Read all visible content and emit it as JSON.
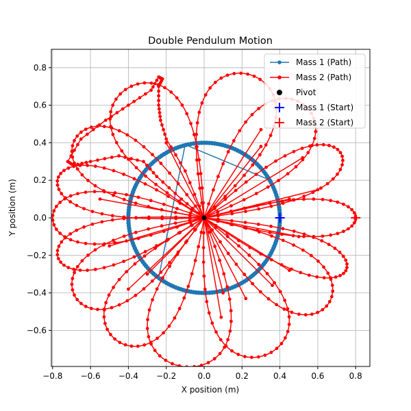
{
  "chart_data": {
    "type": "line",
    "title": "Double Pendulum Motion",
    "xlabel": "X position (m)",
    "ylabel": "Y position (m)",
    "xlim": [
      -0.8,
      0.8
    ],
    "ylim": [
      -0.8,
      0.9
    ],
    "xticks": [
      "−0.8",
      "−0.6",
      "−0.4",
      "−0.2",
      "0.0",
      "0.2",
      "0.4",
      "0.6",
      "0.8"
    ],
    "xtick_values": [
      -0.8,
      -0.6,
      -0.4,
      -0.2,
      0.0,
      0.2,
      0.4,
      0.6,
      0.8
    ],
    "yticks": [
      "−0.6",
      "−0.4",
      "−0.2",
      "0.0",
      "0.2",
      "0.4",
      "0.6",
      "0.8"
    ],
    "ytick_values": [
      -0.6,
      -0.4,
      -0.2,
      0.0,
      0.2,
      0.4,
      0.6,
      0.8
    ],
    "grid": true,
    "legend_position": "top-right",
    "legend": [
      {
        "label": "Mass 1 (Path)",
        "kind": "line-dot",
        "color": "#1f77b4"
      },
      {
        "label": "Mass 2 (Path)",
        "kind": "line-dot",
        "color": "#ff0000"
      },
      {
        "label": "Pivot",
        "kind": "dot",
        "color": "#000000"
      },
      {
        "label": "Mass 1 (Start)",
        "kind": "plus",
        "color": "#0000ff"
      },
      {
        "label": "Mass 2 (Start)",
        "kind": "plus",
        "color": "#ff0000"
      }
    ],
    "pivot": [
      0.0,
      0.0
    ],
    "mass1_start": [
      0.4,
      0.0
    ],
    "mass2_start": [
      0.8,
      0.0
    ],
    "mass1_radius": 0.4,
    "mass2_arm_length": 0.4,
    "mass1_chords": [
      [
        [
          -0.1,
          0.39
        ],
        [
          0.35,
          0.2
        ]
      ],
      [
        [
          -0.1,
          0.39
        ],
        [
          -0.24,
          -0.32
        ]
      ]
    ],
    "lobes": [
      {
        "angle_deg": 0,
        "width": 0.1
      },
      {
        "angle_deg": 25,
        "width": 0.12
      },
      {
        "angle_deg": 48,
        "width": 0.18
      },
      {
        "angle_deg": 72,
        "width": 0.2
      },
      {
        "angle_deg": 120,
        "width": 0.2
      },
      {
        "angle_deg": 148,
        "width": 0.16
      },
      {
        "angle_deg": 165,
        "width": 0.12
      },
      {
        "angle_deg": 180,
        "width": 0.14
      },
      {
        "angle_deg": 195,
        "width": 0.12
      },
      {
        "angle_deg": 212,
        "width": 0.16
      },
      {
        "angle_deg": 235,
        "width": 0.18
      },
      {
        "angle_deg": 262,
        "width": 0.22
      },
      {
        "angle_deg": 295,
        "width": 0.2
      },
      {
        "angle_deg": 325,
        "width": 0.16
      },
      {
        "angle_deg": 340,
        "width": 0.1
      }
    ],
    "mass2_swoop": [
      [
        0.0,
        0.0
      ],
      [
        -0.12,
        0.1
      ],
      [
        -0.25,
        0.22
      ],
      [
        -0.32,
        0.3
      ],
      [
        -0.45,
        0.33
      ],
      [
        -0.6,
        0.3
      ],
      [
        -0.69,
        0.28
      ],
      [
        -0.72,
        0.3
      ],
      [
        -0.65,
        0.42
      ],
      [
        -0.52,
        0.52
      ],
      [
        -0.4,
        0.6
      ],
      [
        -0.28,
        0.68
      ],
      [
        -0.24,
        0.75
      ],
      [
        -0.22,
        0.74
      ],
      [
        -0.24,
        0.7
      ],
      [
        -0.24,
        0.6
      ],
      [
        -0.23,
        0.52
      ],
      [
        -0.2,
        0.42
      ],
      [
        -0.1,
        0.25
      ],
      [
        0.0,
        0.0
      ]
    ],
    "mass2_scatter_segments": [
      [
        [
          0.0,
          0.0
        ],
        [
          0.3,
          0.47
        ]
      ],
      [
        [
          0.0,
          0.0
        ],
        [
          0.1,
          -0.4
        ]
      ],
      [
        [
          0.0,
          0.0
        ],
        [
          0.09,
          -0.53
        ]
      ],
      [
        [
          0.0,
          0.0
        ],
        [
          0.45,
          0.1
        ]
      ],
      [
        [
          0.0,
          0.0
        ],
        [
          0.5,
          -0.1
        ]
      ],
      [
        [
          0.0,
          0.0
        ],
        [
          -0.3,
          -0.3
        ]
      ],
      [
        [
          0.0,
          0.0
        ],
        [
          0.36,
          -0.36
        ]
      ],
      [
        [
          0.0,
          0.0
        ],
        [
          -0.55,
          0.1
        ]
      ],
      [
        [
          0.0,
          0.0
        ],
        [
          0.6,
          0.15
        ]
      ],
      [
        [
          0.0,
          0.0
        ],
        [
          -0.5,
          -0.15
        ]
      ],
      [
        [
          0.0,
          0.0
        ],
        [
          0.3,
          0.38
        ]
      ],
      [
        [
          0.0,
          0.0
        ],
        [
          0.45,
          -0.28
        ]
      ],
      [
        [
          0.0,
          0.0
        ],
        [
          -0.2,
          0.4
        ]
      ],
      [
        [
          0.0,
          0.0
        ],
        [
          -0.4,
          -0.38
        ]
      ],
      [
        [
          0.0,
          0.0
        ],
        [
          0.52,
          0.32
        ]
      ],
      [
        [
          0.0,
          0.0
        ],
        [
          0.22,
          -0.43
        ]
      ]
    ]
  }
}
